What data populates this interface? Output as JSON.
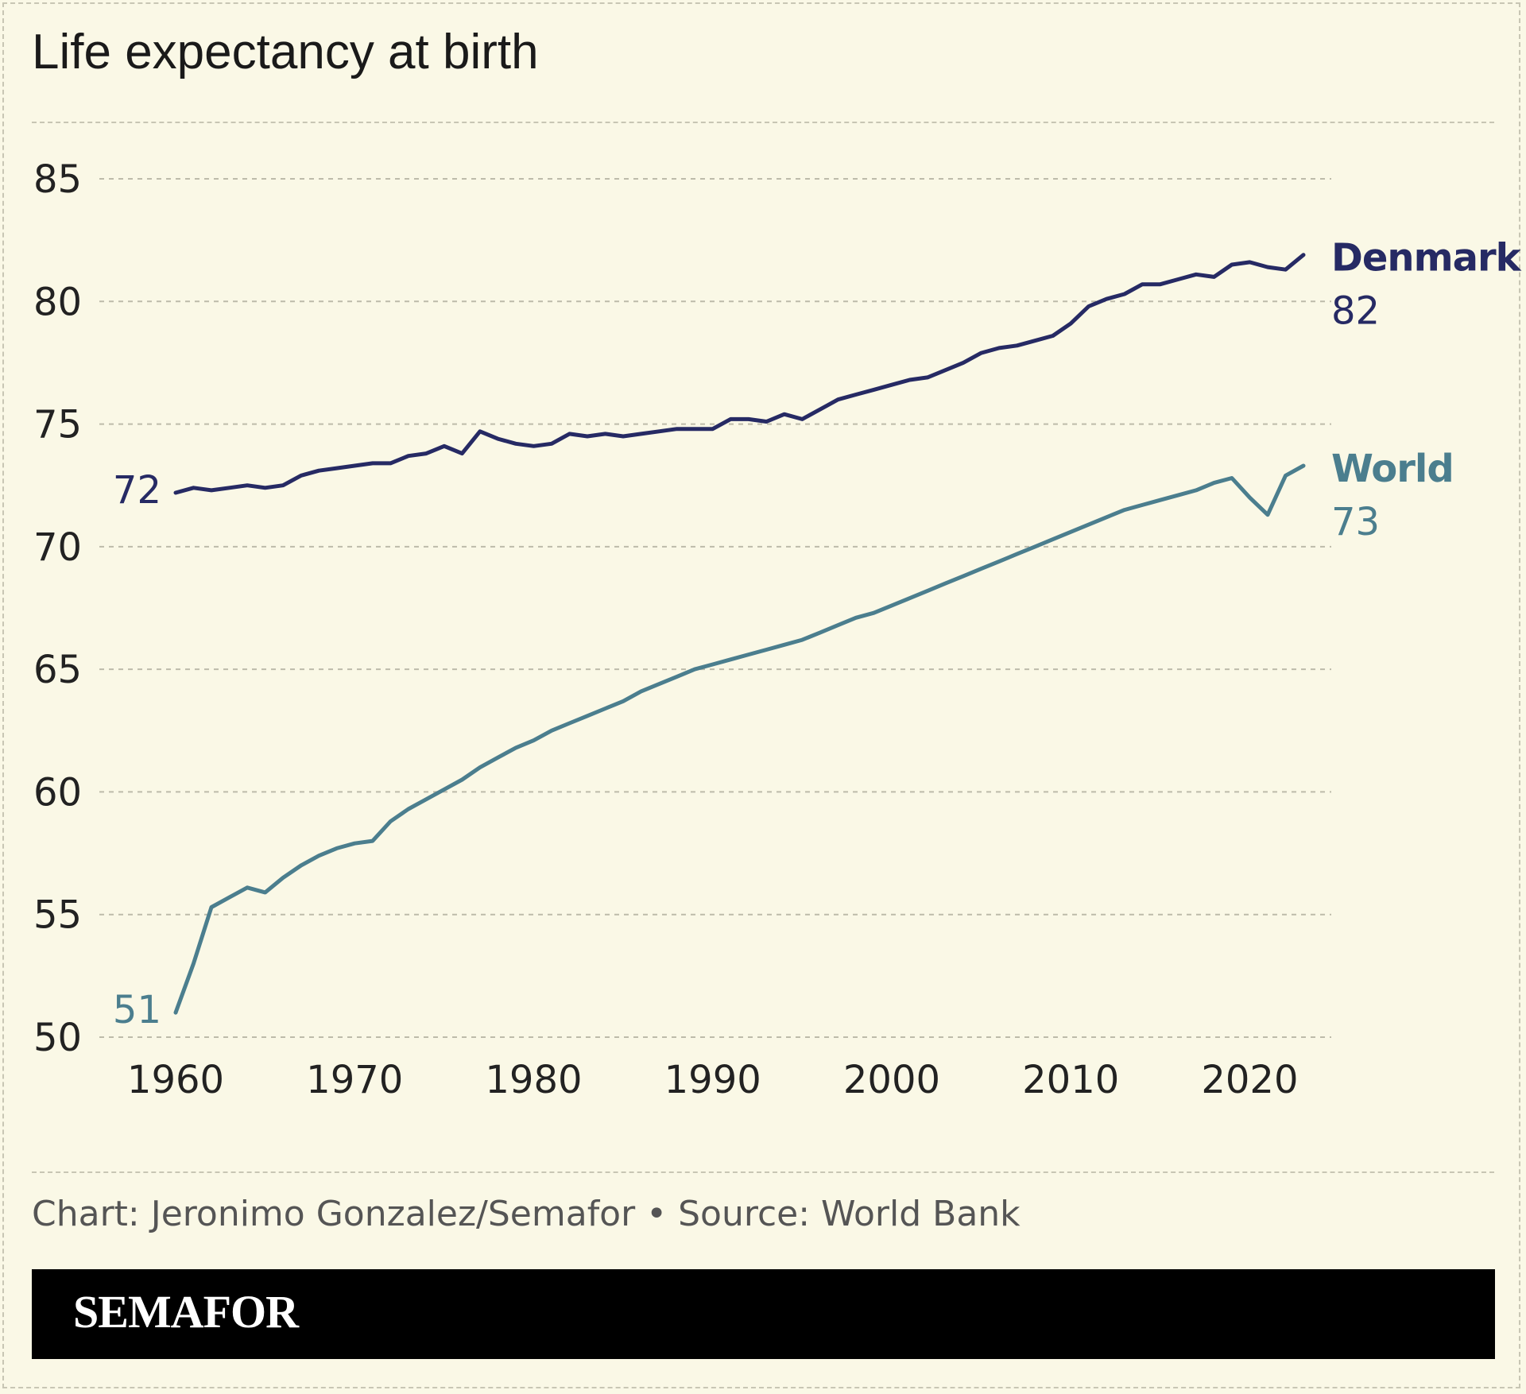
{
  "title": "Life expectancy at birth",
  "credit": "Chart: Jeronimo Gonzalez/Semafor • Source: World Bank",
  "brand": "SEMAFOR",
  "colors": {
    "background": "#faf8e6",
    "denmark": "#262a64",
    "world": "#4b7e8e",
    "grid": "#bdbbaa",
    "axis_text": "#222222"
  },
  "chart_data": {
    "type": "line",
    "title": "Life expectancy at birth",
    "xlabel": "",
    "ylabel": "",
    "xlim": [
      1960,
      2023
    ],
    "ylim": [
      50,
      85
    ],
    "x_ticks": [
      1960,
      1970,
      1980,
      1990,
      2000,
      2010,
      2020
    ],
    "y_ticks": [
      50,
      55,
      60,
      65,
      70,
      75,
      80,
      85
    ],
    "grid": true,
    "x": [
      1960,
      1961,
      1962,
      1963,
      1964,
      1965,
      1966,
      1967,
      1968,
      1969,
      1970,
      1971,
      1972,
      1973,
      1974,
      1975,
      1976,
      1977,
      1978,
      1979,
      1980,
      1981,
      1982,
      1983,
      1984,
      1985,
      1986,
      1987,
      1988,
      1989,
      1990,
      1991,
      1992,
      1993,
      1994,
      1995,
      1996,
      1997,
      1998,
      1999,
      2000,
      2001,
      2002,
      2003,
      2004,
      2005,
      2006,
      2007,
      2008,
      2009,
      2010,
      2011,
      2012,
      2013,
      2014,
      2015,
      2016,
      2017,
      2018,
      2019,
      2020,
      2021,
      2022,
      2023
    ],
    "series": [
      {
        "name": "Denmark",
        "color_key": "denmark",
        "start_label": "72",
        "end_label": "82",
        "values": [
          72.2,
          72.4,
          72.3,
          72.4,
          72.5,
          72.4,
          72.5,
          72.9,
          73.1,
          73.2,
          73.3,
          73.4,
          73.4,
          73.7,
          73.8,
          74.1,
          73.8,
          74.7,
          74.4,
          74.2,
          74.1,
          74.2,
          74.6,
          74.5,
          74.6,
          74.5,
          74.6,
          74.7,
          74.8,
          74.8,
          74.8,
          75.2,
          75.2,
          75.1,
          75.4,
          75.2,
          75.6,
          76.0,
          76.2,
          76.4,
          76.6,
          76.8,
          76.9,
          77.2,
          77.5,
          77.9,
          78.1,
          78.2,
          78.4,
          78.6,
          79.1,
          79.8,
          80.1,
          80.3,
          80.7,
          80.7,
          80.9,
          81.1,
          81.0,
          81.5,
          81.6,
          81.4,
          81.3,
          81.9
        ]
      },
      {
        "name": "World",
        "color_key": "world",
        "start_label": "51",
        "end_label": "73",
        "values": [
          51.0,
          53.0,
          55.3,
          55.7,
          56.1,
          55.9,
          56.5,
          57.0,
          57.4,
          57.7,
          57.9,
          58.0,
          58.8,
          59.3,
          59.7,
          60.1,
          60.5,
          61.0,
          61.4,
          61.8,
          62.1,
          62.5,
          62.8,
          63.1,
          63.4,
          63.7,
          64.1,
          64.4,
          64.7,
          65.0,
          65.2,
          65.4,
          65.6,
          65.8,
          66.0,
          66.2,
          66.5,
          66.8,
          67.1,
          67.3,
          67.6,
          67.9,
          68.2,
          68.5,
          68.8,
          69.1,
          69.4,
          69.7,
          70.0,
          70.3,
          70.6,
          70.9,
          71.2,
          71.5,
          71.7,
          71.9,
          72.1,
          72.3,
          72.6,
          72.8,
          72.0,
          71.3,
          72.9,
          73.3
        ]
      }
    ]
  }
}
